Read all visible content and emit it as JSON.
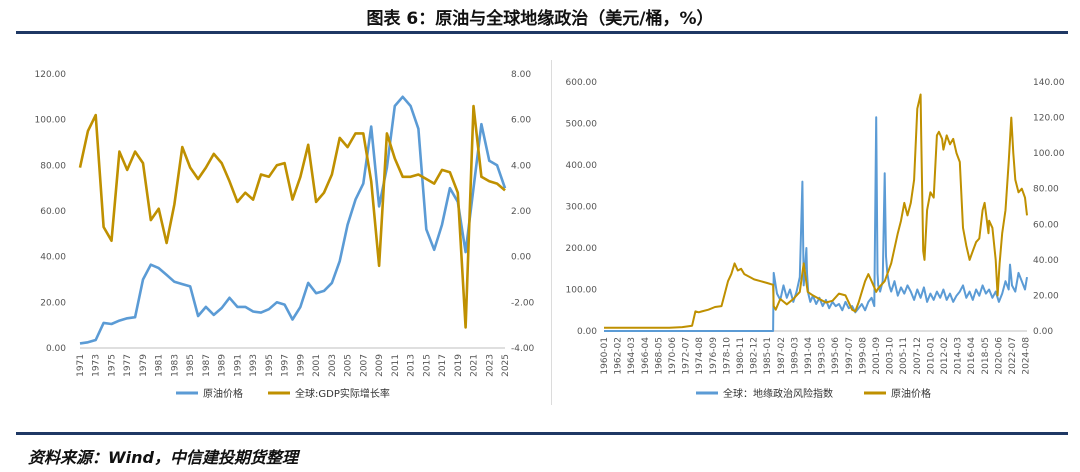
{
  "title": "图表 6：原油与全球地缘政治（美元/桶，%）",
  "source": "资料来源：Wind，中信建投期货整理",
  "colors": {
    "blue": "#5b9bd5",
    "gold": "#bf9000",
    "rule": "#1f3864"
  },
  "chart_data": [
    {
      "type": "line",
      "x_tick_labels": [
        "1971",
        "1973",
        "1975",
        "1977",
        "1979",
        "1981",
        "1983",
        "1985",
        "1987",
        "1989",
        "1991",
        "1993",
        "1995",
        "1997",
        "1999",
        "2001",
        "2003",
        "2005",
        "2007",
        "2009",
        "2011",
        "2013",
        "2015",
        "2017",
        "2019",
        "2021",
        "2023",
        "2025"
      ],
      "y_left": {
        "ticks": [
          "0.00",
          "20.00",
          "40.00",
          "60.00",
          "80.00",
          "100.00",
          "120.00"
        ],
        "range": [
          0,
          120
        ]
      },
      "y_right": {
        "ticks": [
          "-4.00",
          "-2.00",
          "0.00",
          "2.00",
          "4.00",
          "6.00",
          "8.00"
        ],
        "range": [
          -4,
          8
        ]
      },
      "series": [
        {
          "name": "原油价格",
          "axis": "left",
          "color": "#5b9bd5",
          "x": [
            1971,
            1972,
            1973,
            1974,
            1975,
            1976,
            1977,
            1978,
            1979,
            1980,
            1981,
            1982,
            1983,
            1984,
            1985,
            1986,
            1987,
            1988,
            1989,
            1990,
            1991,
            1992,
            1993,
            1994,
            1995,
            1996,
            1997,
            1998,
            1999,
            2000,
            2001,
            2002,
            2003,
            2004,
            2005,
            2006,
            2007,
            2008,
            2009,
            2010,
            2011,
            2012,
            2013,
            2014,
            2015,
            2016,
            2017,
            2018,
            2019,
            2020,
            2021,
            2022,
            2023,
            2024,
            2025
          ],
          "y": [
            2,
            2.5,
            3.5,
            11,
            10.5,
            12,
            13,
            13.5,
            30,
            36.5,
            35,
            32,
            29,
            28,
            27,
            14,
            18,
            14.5,
            17.5,
            22,
            18,
            18,
            16,
            15.5,
            17,
            20,
            19,
            12.5,
            18,
            28.5,
            24,
            25,
            28.5,
            38,
            54,
            65,
            72,
            97,
            62,
            79,
            106,
            110,
            106,
            96,
            52,
            43,
            54,
            70,
            64,
            42,
            70,
            98,
            82,
            80,
            70
          ]
        },
        {
          "name": "全球:GDP实际增长率",
          "axis": "right",
          "color": "#bf9000",
          "x": [
            1971,
            1972,
            1973,
            1974,
            1975,
            1976,
            1977,
            1978,
            1979,
            1980,
            1981,
            1982,
            1983,
            1984,
            1985,
            1986,
            1987,
            1988,
            1989,
            1990,
            1991,
            1992,
            1993,
            1994,
            1995,
            1996,
            1997,
            1998,
            1999,
            2000,
            2001,
            2002,
            2003,
            2004,
            2005,
            2006,
            2007,
            2008,
            2009,
            2010,
            2011,
            2012,
            2013,
            2014,
            2015,
            2016,
            2017,
            2018,
            2019,
            2020,
            2021,
            2022,
            2023,
            2024,
            2025
          ],
          "y": [
            3.9,
            5.5,
            6.2,
            1.3,
            0.7,
            4.6,
            3.8,
            4.6,
            4.1,
            1.6,
            2.1,
            0.6,
            2.3,
            4.8,
            3.9,
            3.4,
            3.9,
            4.5,
            4.1,
            3.3,
            2.4,
            2.8,
            2.5,
            3.6,
            3.5,
            4.0,
            4.1,
            2.5,
            3.5,
            4.9,
            2.4,
            2.8,
            3.6,
            5.2,
            4.8,
            5.4,
            5.4,
            3.3,
            -0.4,
            5.4,
            4.3,
            3.5,
            3.5,
            3.6,
            3.4,
            3.2,
            3.8,
            3.7,
            2.8,
            -3.1,
            6.6,
            3.5,
            3.3,
            3.2,
            2.9
          ]
        }
      ]
    },
    {
      "type": "line",
      "x_tick_labels": [
        "1960-01",
        "1962-02",
        "1964-03",
        "1966-04",
        "1968-05",
        "1970-06",
        "1972-07",
        "1974-08",
        "1976-09",
        "1978-10",
        "1980-11",
        "1982-12",
        "1985-01",
        "1987-02",
        "1989-03",
        "1991-04",
        "1993-05",
        "1995-06",
        "1997-07",
        "1999-08",
        "2001-09",
        "2003-10",
        "2005-11",
        "2007-12",
        "2010-01",
        "2012-02",
        "2014-03",
        "2016-04",
        "2018-05",
        "2020-06",
        "2022-07",
        "2024-08"
      ],
      "y_left": {
        "ticks": [
          "0.00",
          "100.00",
          "200.00",
          "300.00",
          "400.00",
          "500.00",
          "600.00"
        ],
        "range": [
          0,
          600
        ]
      },
      "y_right": {
        "ticks": [
          "0.00",
          "20.00",
          "40.00",
          "60.00",
          "80.00",
          "100.00",
          "120.00",
          "140.00"
        ],
        "range": [
          0,
          140
        ]
      },
      "series": [
        {
          "name": "全球：地缘政治风险指数",
          "axis": "left",
          "color": "#5b9bd5",
          "x": [
            1960,
            1985.9,
            1986,
            1986.5,
            1987,
            1987.5,
            1988,
            1988.5,
            1989,
            1989.5,
            1990,
            1990.4,
            1990.6,
            1991,
            1991.1,
            1991.3,
            1991.6,
            1992,
            1992.5,
            1993,
            1993.5,
            1994,
            1994.5,
            1995,
            1995.5,
            1996,
            1996.5,
            1997,
            1997.5,
            1998,
            1998.5,
            1999,
            1999.5,
            2000,
            2000.5,
            2001,
            2001.4,
            2001.7,
            2001.9,
            2002,
            2002.3,
            2002.7,
            2003,
            2003.2,
            2003.4,
            2003.7,
            2004,
            2004.5,
            2005,
            2005.5,
            2006,
            2006.5,
            2007,
            2007.5,
            2008,
            2008.5,
            2009,
            2009.5,
            2010,
            2010.5,
            2011,
            2011.5,
            2012,
            2012.5,
            2013,
            2013.5,
            2014,
            2014.5,
            2015,
            2015.5,
            2016,
            2016.5,
            2017,
            2017.5,
            2018,
            2018.5,
            2019,
            2019.5,
            2020,
            2020.5,
            2021,
            2021.5,
            2022,
            2022.2,
            2022.5,
            2023,
            2023.5,
            2024,
            2024.5,
            2024.8
          ],
          "y": [
            0,
            0,
            140,
            90,
            75,
            110,
            80,
            100,
            70,
            95,
            130,
            360,
            110,
            200,
            140,
            90,
            70,
            85,
            65,
            80,
            60,
            75,
            55,
            70,
            60,
            65,
            50,
            70,
            55,
            60,
            45,
            55,
            65,
            50,
            70,
            80,
            60,
            515,
            140,
            110,
            95,
            120,
            380,
            180,
            140,
            110,
            95,
            120,
            85,
            105,
            90,
            110,
            95,
            75,
            100,
            80,
            105,
            70,
            90,
            75,
            95,
            80,
            100,
            75,
            90,
            70,
            85,
            95,
            110,
            80,
            95,
            75,
            100,
            85,
            110,
            90,
            100,
            80,
            95,
            70,
            90,
            120,
            100,
            160,
            110,
            95,
            140,
            120,
            100,
            130
          ]
        },
        {
          "name": "原油价格",
          "axis": "right",
          "color": "#bf9000",
          "x": [
            1960,
            1970,
            1972,
            1973.5,
            1974,
            1974.5,
            1975,
            1976,
            1977,
            1978,
            1979,
            1979.5,
            1980,
            1980.5,
            1981,
            1981.5,
            1982,
            1982.5,
            1983,
            1984,
            1985,
            1985.9,
            1986,
            1986.3,
            1987,
            1988,
            1989,
            1990,
            1990.6,
            1990.9,
            1991.2,
            1992,
            1993,
            1994,
            1995,
            1996,
            1997,
            1998,
            1998.5,
            1999,
            1999.5,
            2000,
            2000.5,
            2001,
            2001.7,
            2002,
            2003,
            2004,
            2005,
            2005.5,
            2006,
            2006.5,
            2007,
            2007.5,
            2008,
            2008.5,
            2008.6,
            2008.9,
            2009.1,
            2009.5,
            2010,
            2010.5,
            2011,
            2011.3,
            2011.8,
            2012,
            2012.5,
            2013,
            2013.5,
            2014,
            2014.5,
            2015,
            2015.5,
            2016,
            2016.5,
            2017,
            2017.5,
            2018,
            2018.3,
            2018.9,
            2019,
            2019.5,
            2020,
            2020.3,
            2020.6,
            2021,
            2021.5,
            2022,
            2022.4,
            2022.7,
            2023,
            2023.5,
            2024,
            2024.5,
            2024.8
          ],
          "y": [
            1.8,
            1.8,
            2.2,
            3,
            11,
            10.5,
            11,
            12,
            13.5,
            14,
            28,
            32,
            38,
            34,
            35,
            32,
            31,
            30,
            29,
            28,
            27,
            26,
            14,
            12,
            18,
            15,
            18,
            22,
            38,
            30,
            22,
            20,
            18,
            16,
            17,
            21,
            20,
            12,
            11,
            16,
            22,
            28,
            32,
            28,
            22,
            24,
            28,
            38,
            55,
            62,
            72,
            65,
            72,
            85,
            125,
            133,
            110,
            45,
            40,
            68,
            78,
            75,
            110,
            112,
            108,
            102,
            110,
            105,
            108,
            100,
            95,
            58,
            48,
            40,
            45,
            50,
            52,
            68,
            72,
            55,
            62,
            58,
            40,
            20,
            38,
            55,
            68,
            95,
            120,
            100,
            85,
            78,
            80,
            75,
            65
          ]
        }
      ]
    }
  ]
}
